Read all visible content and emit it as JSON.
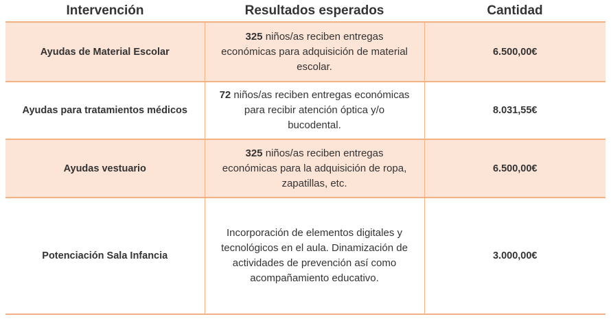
{
  "headers": [
    "Intervención",
    "Resultados esperados",
    "Cantidad"
  ],
  "rows": [
    {
      "name": "Ayudas de Material Escolar",
      "count": "325",
      "desc": " niños/as reciben entregas económicas para adquisición de material escolar.",
      "amount": "6.500,00€",
      "shaded": true
    },
    {
      "name": "Ayudas para tratamientos médicos",
      "count": "72",
      "desc": " niños/as reciben entregas económicas para recibir atención óptica y/o bucodental.",
      "amount": "8.031,55€",
      "shaded": false
    },
    {
      "name": "Ayudas vestuario",
      "count": "325",
      "desc": " niños/as reciben entregas económicas para la adquisición de ropa, zapatillas, etc.",
      "amount": "6.500,00€",
      "shaded": true
    },
    {
      "name": "Potenciación Sala Infancia",
      "count": "",
      "desc": "Incorporación de elementos digitales y tecnológicos en el aula. Dinamización de actividades de prevención así como acompañamiento educativo.",
      "amount": "3.000,00€",
      "shaded": false
    }
  ],
  "colors": {
    "shade": "#fce4d6",
    "border": "#f4b183",
    "text": "#333333"
  }
}
